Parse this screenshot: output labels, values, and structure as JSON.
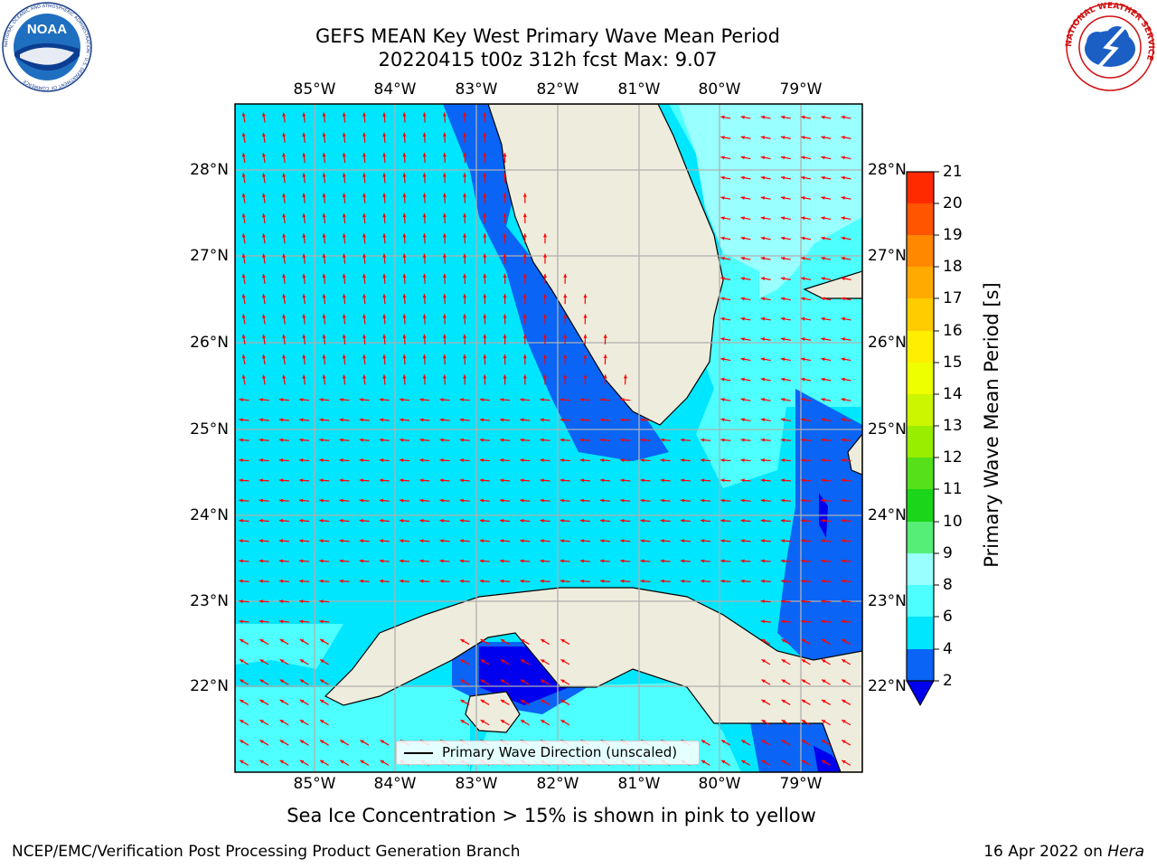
{
  "header": {
    "title_line1": "GEFS MEAN Key West Primary Wave Mean Period",
    "title_line2": "20220415 t00z 312h fcst   Max: 9.07"
  },
  "logos": {
    "left": "NOAA",
    "left_ring_text": "NATIONAL OCEANIC AND ATMOSPHERIC ADMINISTRATION · U.S. DEPARTMENT OF COMMERCE",
    "right_ring_text": "NATIONAL WEATHER SERVICE"
  },
  "map": {
    "lon_labels": [
      "85°W",
      "84°W",
      "83°W",
      "82°W",
      "81°W",
      "80°W",
      "79°W"
    ],
    "lat_labels": [
      "28°N",
      "27°N",
      "26°N",
      "25°N",
      "24°N",
      "23°N",
      "22°N"
    ],
    "legend_label": "Primary Wave Direction (unscaled)",
    "colors": {
      "land": "#eeecdc",
      "vector": "#ff0000",
      "coast": "#000000",
      "grid": "#b0b0b0"
    }
  },
  "colorbar": {
    "label": "Primary Wave Mean Period [s]",
    "ticks": [
      "2",
      "4",
      "6",
      "8",
      "9",
      "10",
      "11",
      "12",
      "13",
      "14",
      "15",
      "16",
      "17",
      "18",
      "19",
      "20",
      "21"
    ],
    "colors": [
      "#0a64f5",
      "#00e6ff",
      "#4dffff",
      "#99ffff",
      "#55ee77",
      "#1ad51a",
      "#55e01a",
      "#99ee00",
      "#ccf500",
      "#eeff00",
      "#ffee00",
      "#ffcc00",
      "#ffaa00",
      "#ff8800",
      "#ff5500",
      "#ff2a00",
      "#ff0000"
    ],
    "under_color": "#0000ee"
  },
  "footer": {
    "subtitle": "Sea Ice Concentration > 15% is shown in pink to yellow",
    "left": "NCEP/EMC/Verification Post Processing Product Generation Branch",
    "right_date": "16 Apr 2022 on ",
    "right_machine": "Hera"
  }
}
